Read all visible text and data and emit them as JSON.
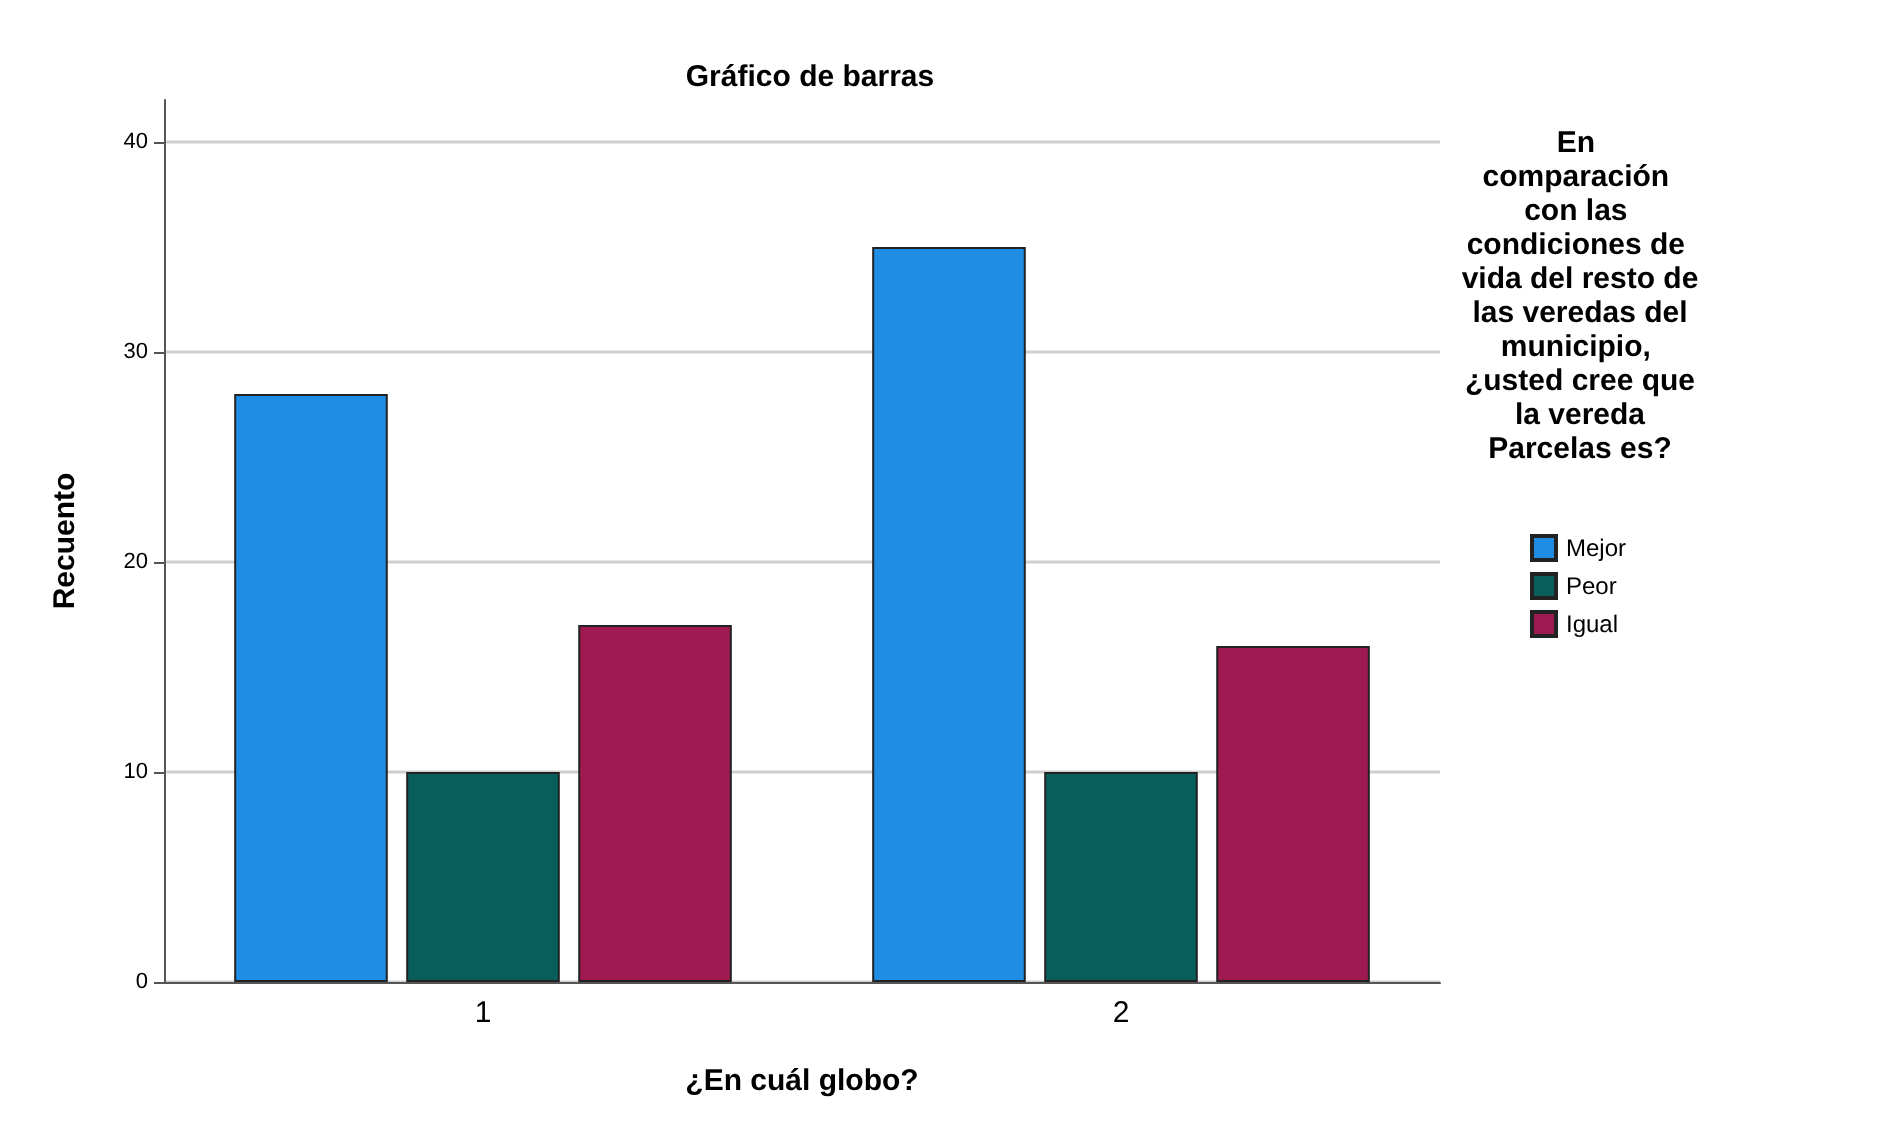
{
  "chart_data": {
    "type": "bar",
    "title": "Gráfico de barras",
    "xlabel": "¿En cuál globo?",
    "ylabel": "Recuento",
    "legend_title": "En comparación con las condiciones de vida del resto de las veredas del municipio, ¿usted cree que la vereda Parcelas es?",
    "categories": [
      "1",
      "2"
    ],
    "series": [
      {
        "name": "Mejor",
        "color": "#1f8de3",
        "values": [
          28,
          35
        ]
      },
      {
        "name": "Peor",
        "color": "#075e5a",
        "values": [
          10,
          10
        ]
      },
      {
        "name": "Igual",
        "color": "#9e1a50",
        "values": [
          17,
          16
        ]
      }
    ],
    "ylim": [
      0,
      42
    ],
    "yticks": [
      0,
      10,
      20,
      30,
      40
    ],
    "grid": "y",
    "legend": "right"
  }
}
